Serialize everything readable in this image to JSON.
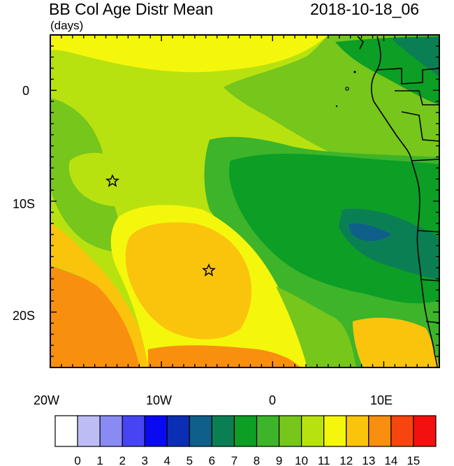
{
  "header": {
    "title": "BB Col Age Distr Mean",
    "units": "(days)",
    "datetime": "2018-10-18_06"
  },
  "map": {
    "lon_ticks": [
      "20W",
      "10W",
      "0",
      "10E"
    ],
    "lat_ticks": [
      "0",
      "10S",
      "20S"
    ],
    "markers": [
      {
        "name": "star-marker-north",
        "lon": -14.3,
        "lat": -8.1
      },
      {
        "name": "star-marker-south",
        "lon": -5.8,
        "lat": -16.0
      }
    ]
  },
  "colorbar": {
    "labels": [
      "0",
      "1",
      "2",
      "3",
      "4",
      "5",
      "6",
      "7",
      "8",
      "9",
      "10",
      "11",
      "12",
      "13",
      "14",
      "15"
    ],
    "colors": [
      "#ffffff",
      "#bdbdf6",
      "#8a8af3",
      "#4545f4",
      "#0a0af0",
      "#0b2fb4",
      "#0f5f8a",
      "#0b7f54",
      "#0c9e25",
      "#3db42a",
      "#76c61c",
      "#b8e20f",
      "#f4f70c",
      "#fac40c",
      "#f98f0f",
      "#f7450f",
      "#f3110f"
    ]
  }
}
